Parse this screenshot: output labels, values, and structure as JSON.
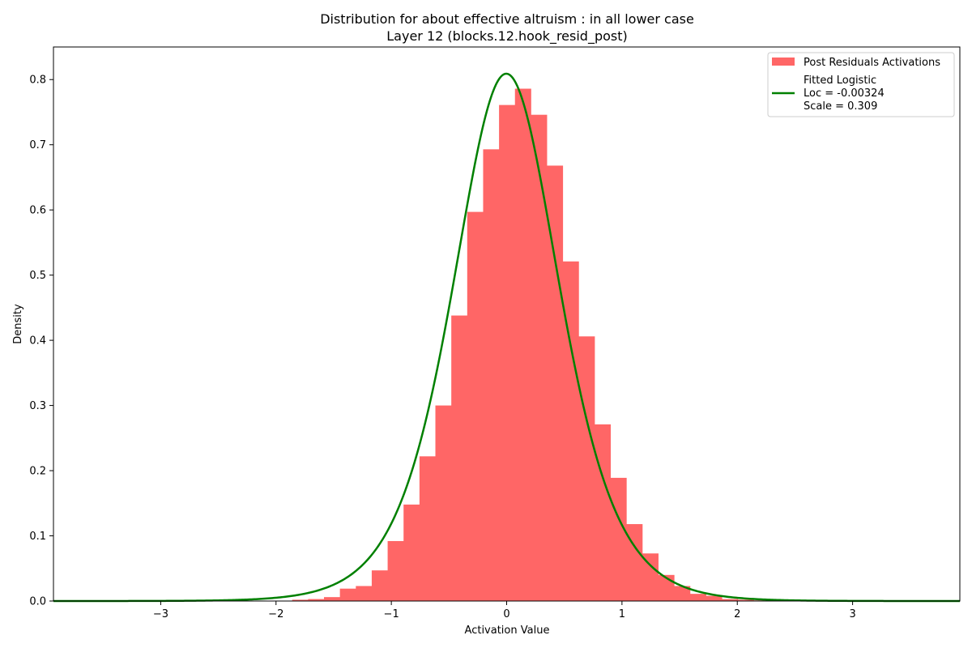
{
  "chart_data": {
    "type": "bar",
    "title": "Distribution for about effective altruism : in all lower case",
    "subtitle": "Layer 12 (blocks.12.hook_resid_post)",
    "xlabel": "Activation Value",
    "ylabel": "Density",
    "xlim": [
      -3.93,
      3.93
    ],
    "ylim": [
      0,
      0.85
    ],
    "xticks": [
      -3,
      -2,
      -1,
      0,
      1,
      2,
      3
    ],
    "xtick_labels": [
      "−3",
      "−2",
      "−1",
      "0",
      "1",
      "2",
      "3"
    ],
    "yticks": [
      0.0,
      0.1,
      0.2,
      0.3,
      0.4,
      0.5,
      0.6,
      0.7,
      0.8
    ],
    "ytick_labels": [
      "0.0",
      "0.1",
      "0.2",
      "0.3",
      "0.4",
      "0.5",
      "0.6",
      "0.7",
      "0.8"
    ],
    "grid": false,
    "legend_position": "top-right",
    "histogram": {
      "name": "Post Residuals Activations",
      "color": "#ff6666",
      "bin_start": -3.93,
      "bin_width": 0.138,
      "values": [
        0.0005,
        0.0005,
        0.0005,
        0.0005,
        0.0005,
        0.0005,
        0.0005,
        0.0005,
        0.0005,
        0.0005,
        0.0005,
        0.0005,
        0.0005,
        0.0005,
        0.0005,
        0.002,
        0.003,
        0.006,
        0.019,
        0.023,
        0.047,
        0.092,
        0.148,
        0.222,
        0.3,
        0.438,
        0.597,
        0.693,
        0.761,
        0.786,
        0.746,
        0.668,
        0.521,
        0.406,
        0.271,
        0.189,
        0.118,
        0.073,
        0.04,
        0.023,
        0.011,
        0.008,
        0.003,
        0.002,
        0.001,
        0.0005,
        0.0005,
        0.0005,
        0.0005,
        0.0005,
        0.0005,
        0.0005,
        0.0005,
        0.0005,
        0.0005,
        0.0005,
        0.0005
      ]
    },
    "fit": {
      "name": "Fitted Logistic",
      "color": "#008000",
      "loc": -0.00324,
      "scale": 0.309,
      "loc_label": "Loc = -0.00324",
      "scale_label": "Scale = 0.309"
    }
  }
}
